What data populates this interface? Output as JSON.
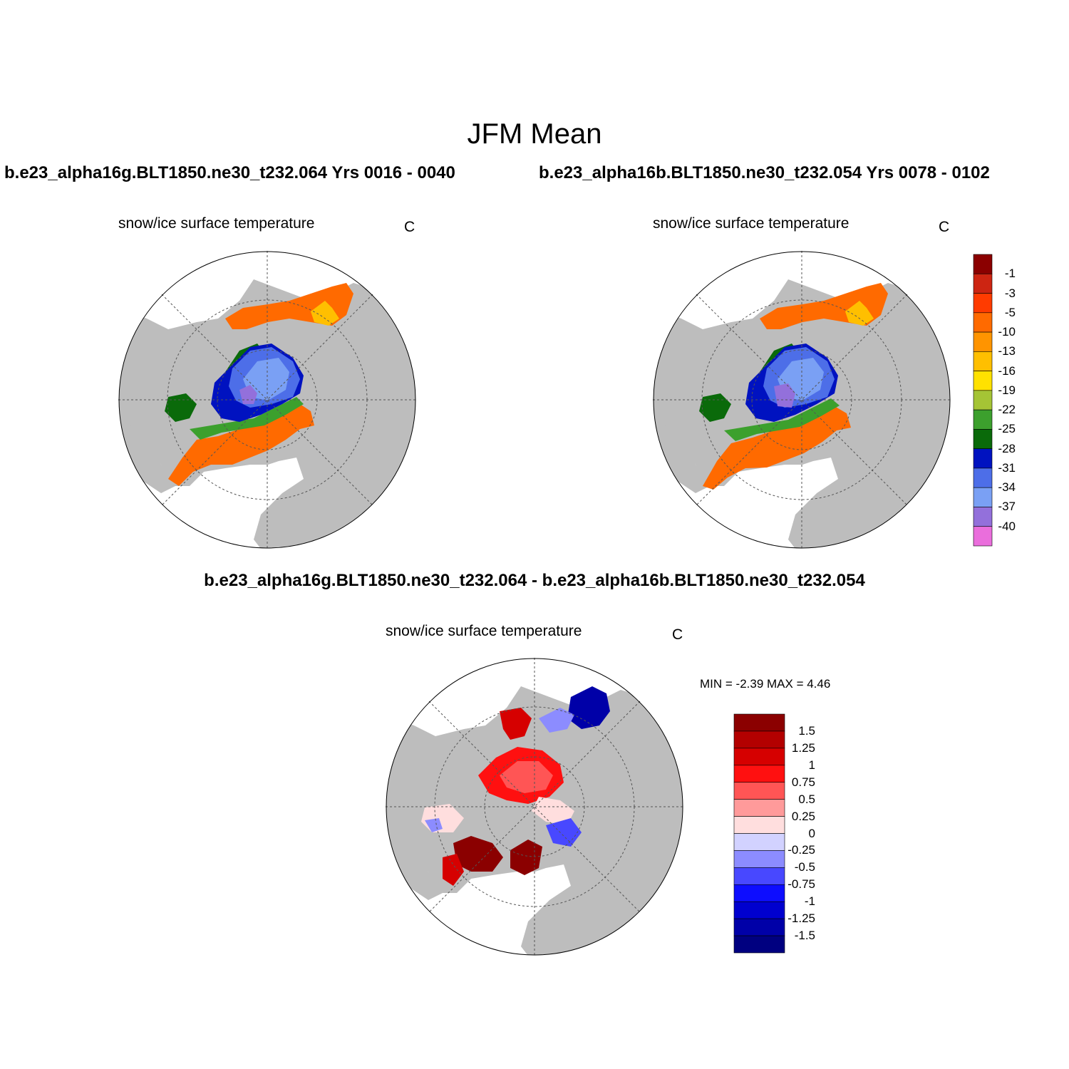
{
  "figure": {
    "title": "JFM Mean",
    "run1_title": "b.e23_alpha16g.BLT1850.ne30_t232.064  Yrs 0016 - 0040",
    "run2_title": "b.e23_alpha16b.BLT1850.ne30_t232.054  Yrs 0078 - 0102",
    "diff_title": "b.e23_alpha16g.BLT1850.ne30_t232.064 - b.e23_alpha16b.BLT1850.ne30_t232.054"
  },
  "panels": {
    "run1": {
      "variable": "snow/ice surface temperature",
      "units": "C"
    },
    "run2": {
      "variable": "snow/ice surface temperature",
      "units": "C"
    },
    "diff": {
      "variable": "snow/ice surface temperature",
      "units": "C",
      "min_max": "MIN =  -2.39 MAX =   4.46"
    }
  },
  "colors": {
    "land": "#bdbdbd",
    "ocean": "#ffffff",
    "abs_scale": [
      "#8b0000",
      "#cd2512",
      "#ff3b00",
      "#ff6a00",
      "#ff9400",
      "#ffbf00",
      "#ffe100",
      "#a5c435",
      "#3ca02d",
      "#0a6a0a",
      "#0012c0",
      "#4d6ee8",
      "#7aa0f4",
      "#9370db",
      "#ea6edc"
    ],
    "diff_scale": [
      "#8b0000",
      "#b30000",
      "#d60000",
      "#ff1010",
      "#ff5555",
      "#ff9a9a",
      "#ffdede",
      "#d2d2ff",
      "#8c8cff",
      "#4848ff",
      "#0d0dff",
      "#0000cf",
      "#0000a8",
      "#000080"
    ]
  },
  "colorbars": {
    "abs_labels": [
      "-1",
      "-3",
      "-5",
      "-10",
      "-13",
      "-16",
      "-19",
      "-22",
      "-25",
      "-28",
      "-31",
      "-34",
      "-37",
      "-40"
    ],
    "diff_labels": [
      "1.5",
      "1.25",
      "1",
      "0.75",
      "0.5",
      "0.25",
      "0",
      "-0.25",
      "-0.5",
      "-0.75",
      "-1",
      "-1.25",
      "-1.5"
    ]
  }
}
